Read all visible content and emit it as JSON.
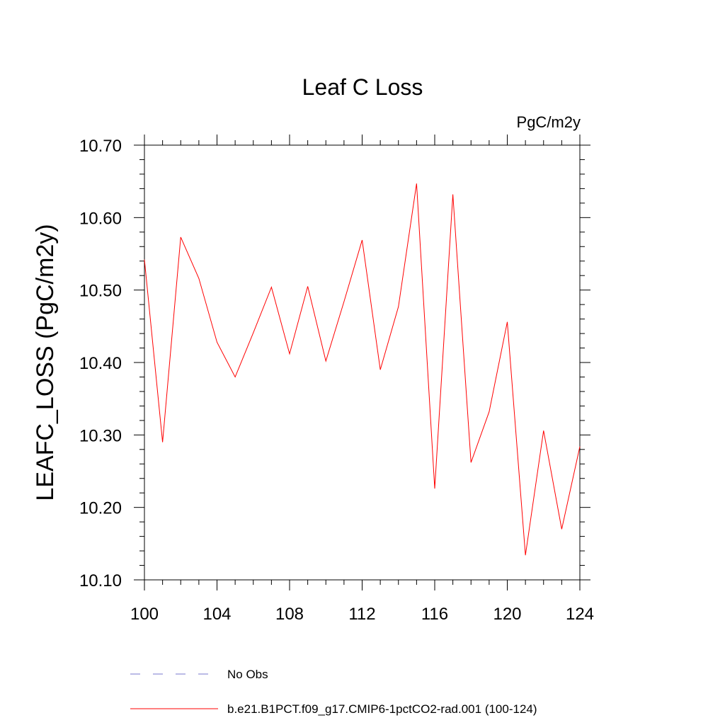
{
  "chart_data": {
    "type": "line",
    "title": "Leaf C Loss",
    "units": "PgC/m2y",
    "xlabel": "",
    "ylabel": "LEAFC_LOSS  (PgC/m2y)",
    "xlim": [
      100,
      124
    ],
    "ylim": [
      10.1,
      10.7
    ],
    "x_ticks": [
      100,
      104,
      108,
      112,
      116,
      120,
      124
    ],
    "x_tick_labels": [
      "100",
      "104",
      "108",
      "112",
      "116",
      "120",
      "124"
    ],
    "y_ticks": [
      10.1,
      10.2,
      10.3,
      10.4,
      10.5,
      10.6,
      10.7
    ],
    "y_tick_labels": [
      "10.10",
      "10.20",
      "10.30",
      "10.40",
      "10.50",
      "10.60",
      "10.70"
    ],
    "grid": false,
    "series": [
      {
        "name": "b.e21.B1PCT.f09_g17.CMIP6-1pctCO2-rad.001 (100-124)",
        "color": "#ff0000",
        "x": [
          100,
          101,
          102,
          103,
          104,
          105,
          106,
          107,
          108,
          109,
          110,
          111,
          112,
          113,
          114,
          115,
          116,
          117,
          118,
          119,
          120,
          121,
          122,
          123,
          124
        ],
        "values": [
          10.542,
          10.29,
          10.573,
          10.516,
          10.428,
          10.38,
          10.441,
          10.504,
          10.412,
          10.505,
          10.402,
          10.484,
          10.569,
          10.39,
          10.477,
          10.647,
          10.226,
          10.632,
          10.262,
          10.332,
          10.456,
          10.134,
          10.306,
          10.17,
          10.284
        ]
      }
    ],
    "legend": {
      "placement": "bottom",
      "entries": [
        {
          "label": "No Obs",
          "color": "#7777cc",
          "style": "dashed"
        },
        {
          "label": "b.e21.B1PCT.f09_g17.CMIP6-1pctCO2-rad.001 (100-124)",
          "color": "#ff0000",
          "style": "solid"
        }
      ]
    }
  }
}
